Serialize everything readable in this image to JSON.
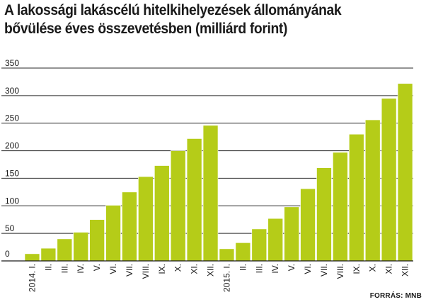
{
  "chart_data": {
    "type": "bar",
    "title_lines": [
      "A lakossági lakáscélú hitelkihelyezések állományának",
      "bővülése éves összevetésben (milliárd forint)"
    ],
    "categories": [
      "2014. I.",
      "II.",
      "III.",
      "IV.",
      "V.",
      "VI.",
      "VII.",
      "VIII.",
      "IX.",
      "X.",
      "XI.",
      "XII.",
      "2015. I.",
      "II.",
      "III.",
      "IV.",
      "V.",
      "VI.",
      "VII.",
      "VIII.",
      "IX.",
      "X.",
      "XI.",
      "XII."
    ],
    "values": [
      13,
      23,
      40,
      52,
      75,
      101,
      125,
      153,
      173,
      200,
      222,
      246,
      22,
      33,
      58,
      77,
      98,
      131,
      169,
      197,
      230,
      256,
      295,
      322
    ],
    "ylim": [
      0,
      350
    ],
    "yticks": [
      0,
      50,
      100,
      150,
      200,
      250,
      300,
      350
    ],
    "grid": true,
    "bar_color": "#b5cc18",
    "source": "FORRÁS: MNB"
  }
}
